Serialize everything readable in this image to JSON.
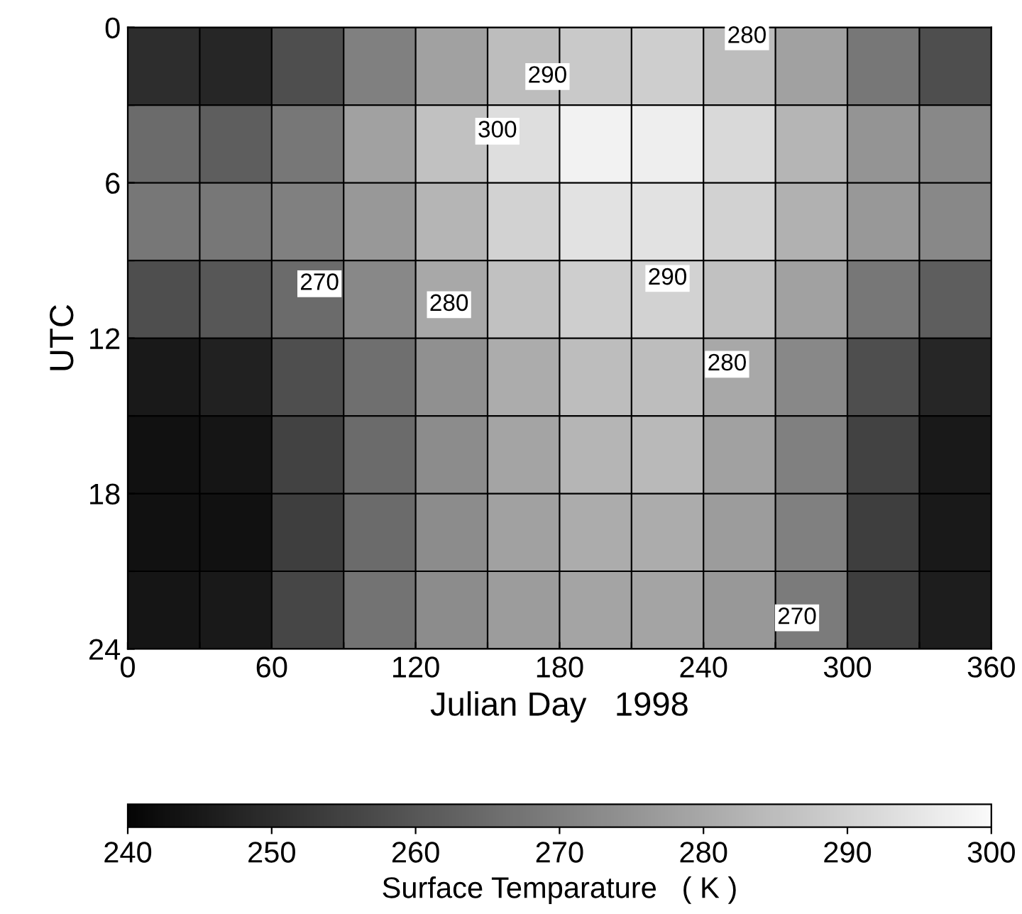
{
  "chart_data": {
    "type": "heatmap",
    "xlabel": "Julian Day   1998",
    "ylabel": "UTC",
    "clabel": "Surface Temparature   ( K )",
    "x": [
      15,
      45,
      75,
      105,
      135,
      165,
      195,
      225,
      255,
      285,
      315,
      345
    ],
    "y": [
      1.5,
      4.5,
      7.5,
      10.5,
      13.5,
      16.5,
      19.5,
      22.5
    ],
    "xlim": [
      0,
      360
    ],
    "ylim": [
      24,
      0
    ],
    "xticks": [
      0,
      {
        "value": 30,
        "label": null
      },
      60,
      {
        "value": 90,
        "label": null
      },
      120,
      {
        "value": 150,
        "label": null
      },
      180,
      {
        "value": 210,
        "label": null
      },
      240,
      {
        "value": 270,
        "label": null
      },
      300,
      {
        "value": 330,
        "label": null
      },
      360
    ],
    "yticks": [
      0,
      {
        "value": 3,
        "label": null
      },
      6,
      {
        "value": 9,
        "label": null
      },
      12,
      {
        "value": 15,
        "label": null
      },
      18,
      {
        "value": 21,
        "label": null
      },
      24
    ],
    "grid": true,
    "cells": [
      [
        250,
        248,
        258,
        270,
        278,
        285,
        288,
        289,
        285,
        278,
        268,
        258
      ],
      [
        265,
        262,
        268,
        278,
        286,
        293,
        298,
        297,
        292,
        283,
        275,
        272
      ],
      [
        268,
        268,
        270,
        276,
        283,
        290,
        294,
        294,
        290,
        282,
        276,
        272
      ],
      [
        258,
        260,
        265,
        272,
        280,
        286,
        289,
        290,
        286,
        278,
        268,
        262
      ],
      [
        245,
        247,
        258,
        266,
        274,
        281,
        285,
        285,
        280,
        272,
        258,
        248
      ],
      [
        243,
        244,
        255,
        265,
        273,
        279,
        283,
        284,
        278,
        270,
        255,
        245
      ],
      [
        243,
        243,
        254,
        265,
        273,
        278,
        281,
        281,
        277,
        270,
        254,
        245
      ],
      [
        244,
        245,
        256,
        267,
        273,
        277,
        279,
        279,
        276,
        269,
        254,
        246
      ]
    ],
    "clim": [
      240,
      300
    ],
    "cticks": [
      240,
      250,
      260,
      270,
      280,
      290,
      300
    ],
    "annotations": [
      "280",
      "290",
      "300",
      "270",
      "280",
      "290",
      "280",
      "270"
    ]
  }
}
